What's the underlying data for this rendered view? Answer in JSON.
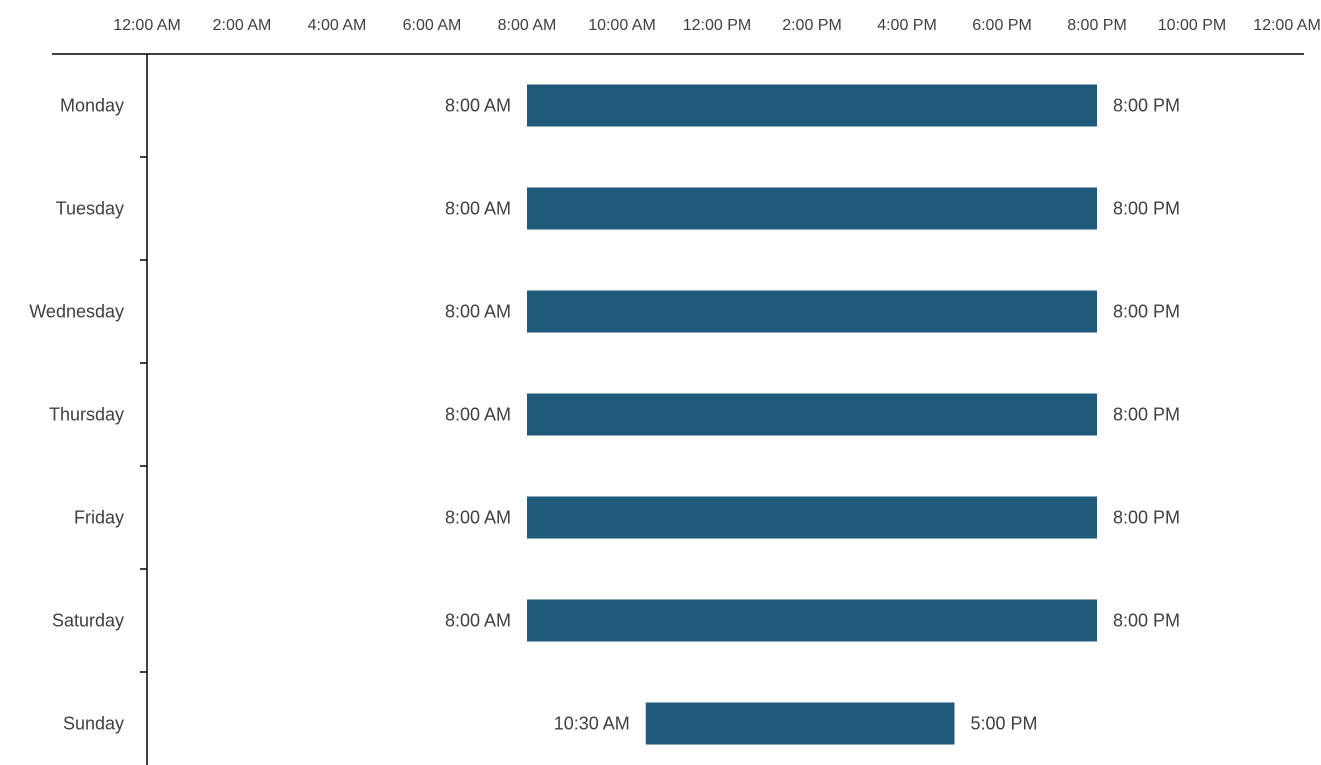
{
  "chart_data": {
    "type": "bar",
    "orientation": "horizontal",
    "x_axis_position": "top",
    "xlim": [
      "12:00 AM",
      "12:00 AM"
    ],
    "x_tick_labels": [
      "12:00 AM",
      "2:00 AM",
      "4:00 AM",
      "6:00 AM",
      "8:00 AM",
      "10:00 AM",
      "12:00 PM",
      "2:00 PM",
      "4:00 PM",
      "6:00 PM",
      "8:00 PM",
      "10:00 PM",
      "12:00 AM"
    ],
    "categories": [
      "Monday",
      "Tuesday",
      "Wednesday",
      "Thursday",
      "Friday",
      "Saturday",
      "Sunday"
    ],
    "series": [
      {
        "start": [
          "8:00 AM",
          "8:00 AM",
          "8:00 AM",
          "8:00 AM",
          "8:00 AM",
          "8:00 AM",
          "10:30 AM"
        ],
        "end": [
          "8:00 PM",
          "8:00 PM",
          "8:00 PM",
          "8:00 PM",
          "8:00 PM",
          "8:00 PM",
          "5:00 PM"
        ]
      }
    ],
    "title": "",
    "xlabel": "",
    "ylabel": "",
    "grid": false,
    "legend": "none",
    "bar_color": "#1f5a7a"
  }
}
